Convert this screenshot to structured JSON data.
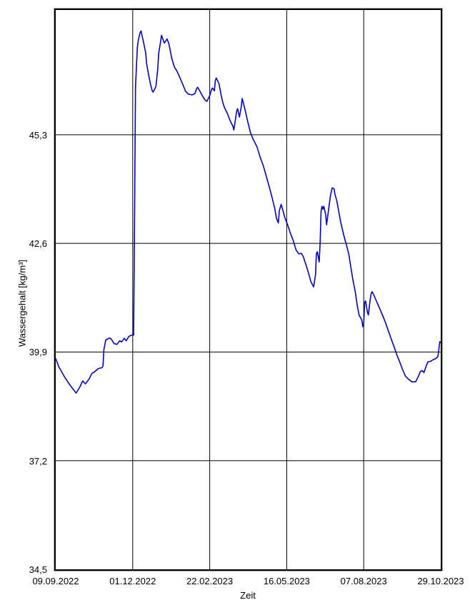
{
  "chart_data": {
    "type": "line",
    "title": "",
    "xlabel": "Zeit",
    "ylabel": "Wassergehalt [kg/m³]",
    "x_unit": "days since 09.09.2022",
    "xlim": [
      0,
      415
    ],
    "ylim": [
      34.5,
      48.4
    ],
    "grid": true,
    "legend": "none",
    "axis_color": "#000000",
    "grid_color": "#000000",
    "frame_shadow_color": "#a9a9a9",
    "line_color": "#0000cc",
    "x_ticks": [
      {
        "day": 0,
        "label": "09.09.2022"
      },
      {
        "day": 83,
        "label": "01.12.2022"
      },
      {
        "day": 166,
        "label": "22.02.2023"
      },
      {
        "day": 249,
        "label": "16.05.2023"
      },
      {
        "day": 332,
        "label": "07.08.2023"
      },
      {
        "day": 415,
        "label": "29.10.2023"
      }
    ],
    "y_ticks": [
      {
        "value": 34.5,
        "label": "34,5"
      },
      {
        "value": 37.2,
        "label": "37,2"
      },
      {
        "value": 39.9,
        "label": "39,9"
      },
      {
        "value": 42.6,
        "label": "42,6"
      },
      {
        "value": 45.3,
        "label": "45,3"
      }
    ],
    "series": [
      {
        "name": "Wassergehalt",
        "points": [
          [
            0,
            39.74
          ],
          [
            3,
            39.55
          ],
          [
            9,
            39.3
          ],
          [
            15,
            39.09
          ],
          [
            21,
            38.91
          ],
          [
            22,
            38.88
          ],
          [
            26,
            39.03
          ],
          [
            29,
            39.18
          ],
          [
            32,
            39.11
          ],
          [
            36,
            39.23
          ],
          [
            39,
            39.37
          ],
          [
            42,
            39.41
          ],
          [
            46,
            39.49
          ],
          [
            50,
            39.51
          ],
          [
            51,
            39.56
          ],
          [
            52,
            39.97
          ],
          [
            54,
            40.2
          ],
          [
            58,
            40.25
          ],
          [
            60,
            40.22
          ],
          [
            63,
            40.11
          ],
          [
            66,
            40.09
          ],
          [
            69,
            40.18
          ],
          [
            71,
            40.15
          ],
          [
            74,
            40.24
          ],
          [
            76,
            40.18
          ],
          [
            79,
            40.29
          ],
          [
            82,
            40.32
          ],
          [
            84,
            40.32
          ],
          [
            85,
            43.3
          ],
          [
            86,
            46.5
          ],
          [
            88,
            47.47
          ],
          [
            89,
            47.65
          ],
          [
            91,
            47.84
          ],
          [
            92,
            47.88
          ],
          [
            93,
            47.77
          ],
          [
            95,
            47.56
          ],
          [
            97,
            47.33
          ],
          [
            98,
            47.06
          ],
          [
            100,
            46.8
          ],
          [
            102,
            46.57
          ],
          [
            104,
            46.39
          ],
          [
            105,
            46.36
          ],
          [
            108,
            46.5
          ],
          [
            110,
            46.94
          ],
          [
            111,
            47.33
          ],
          [
            113,
            47.61
          ],
          [
            114,
            47.77
          ],
          [
            117,
            47.58
          ],
          [
            120,
            47.68
          ],
          [
            122,
            47.56
          ],
          [
            125,
            47.21
          ],
          [
            128,
            46.98
          ],
          [
            131,
            46.87
          ],
          [
            134,
            46.71
          ],
          [
            137,
            46.55
          ],
          [
            140,
            46.38
          ],
          [
            143,
            46.31
          ],
          [
            147,
            46.29
          ],
          [
            150,
            46.32
          ],
          [
            152,
            46.45
          ],
          [
            153,
            46.48
          ],
          [
            156,
            46.36
          ],
          [
            158,
            46.27
          ],
          [
            161,
            46.16
          ],
          [
            163,
            46.13
          ],
          [
            166,
            46.27
          ],
          [
            168,
            46.43
          ],
          [
            169,
            46.46
          ],
          [
            171,
            46.39
          ],
          [
            172,
            46.64
          ],
          [
            173,
            46.71
          ],
          [
            176,
            46.57
          ],
          [
            178,
            46.32
          ],
          [
            180,
            46.11
          ],
          [
            182,
            45.97
          ],
          [
            185,
            45.83
          ],
          [
            188,
            45.65
          ],
          [
            191,
            45.51
          ],
          [
            192,
            45.42
          ],
          [
            195,
            45.88
          ],
          [
            196,
            45.95
          ],
          [
            198,
            45.74
          ],
          [
            200,
            46.0
          ],
          [
            201,
            46.2
          ],
          [
            204,
            45.93
          ],
          [
            207,
            45.62
          ],
          [
            210,
            45.35
          ],
          [
            213,
            45.18
          ],
          [
            217,
            45.0
          ],
          [
            220,
            44.77
          ],
          [
            224,
            44.51
          ],
          [
            228,
            44.19
          ],
          [
            232,
            43.85
          ],
          [
            236,
            43.48
          ],
          [
            238,
            43.22
          ],
          [
            240,
            43.11
          ],
          [
            241,
            43.41
          ],
          [
            243,
            43.57
          ],
          [
            245,
            43.41
          ],
          [
            247,
            43.24
          ],
          [
            250,
            43.06
          ],
          [
            253,
            42.85
          ],
          [
            256,
            42.67
          ],
          [
            259,
            42.44
          ],
          [
            262,
            42.34
          ],
          [
            265,
            42.35
          ],
          [
            267,
            42.26
          ],
          [
            270,
            42.05
          ],
          [
            273,
            41.82
          ],
          [
            275,
            41.65
          ],
          [
            278,
            41.52
          ],
          [
            280,
            41.82
          ],
          [
            281,
            42.35
          ],
          [
            282,
            42.39
          ],
          [
            284,
            42.14
          ],
          [
            285,
            42.62
          ],
          [
            286,
            43.4
          ],
          [
            287,
            43.52
          ],
          [
            288,
            43.45
          ],
          [
            289,
            43.52
          ],
          [
            291,
            43.32
          ],
          [
            292,
            43.06
          ],
          [
            294,
            43.41
          ],
          [
            296,
            43.76
          ],
          [
            298,
            43.98
          ],
          [
            300,
            43.96
          ],
          [
            301,
            43.82
          ],
          [
            303,
            43.66
          ],
          [
            305,
            43.41
          ],
          [
            307,
            43.15
          ],
          [
            310,
            42.85
          ],
          [
            312,
            42.67
          ],
          [
            313,
            42.6
          ],
          [
            316,
            42.32
          ],
          [
            318,
            42.03
          ],
          [
            320,
            41.74
          ],
          [
            323,
            41.38
          ],
          [
            325,
            41.06
          ],
          [
            327,
            40.82
          ],
          [
            330,
            40.69
          ],
          [
            331,
            40.53
          ],
          [
            332,
            40.6
          ],
          [
            333,
            41.13
          ],
          [
            334,
            41.17
          ],
          [
            336,
            40.89
          ],
          [
            337,
            40.82
          ],
          [
            339,
            41.21
          ],
          [
            340,
            41.35
          ],
          [
            341,
            41.4
          ],
          [
            343,
            41.31
          ],
          [
            346,
            41.15
          ],
          [
            349,
            40.99
          ],
          [
            352,
            40.83
          ],
          [
            355,
            40.66
          ],
          [
            358,
            40.46
          ],
          [
            362,
            40.2
          ],
          [
            365,
            40.01
          ],
          [
            368,
            39.81
          ],
          [
            371,
            39.64
          ],
          [
            374,
            39.46
          ],
          [
            377,
            39.3
          ],
          [
            381,
            39.21
          ],
          [
            384,
            39.16
          ],
          [
            388,
            39.16
          ],
          [
            391,
            39.3
          ],
          [
            393,
            39.41
          ],
          [
            395,
            39.44
          ],
          [
            397,
            39.39
          ],
          [
            399,
            39.53
          ],
          [
            401,
            39.65
          ],
          [
            404,
            39.67
          ],
          [
            407,
            39.71
          ],
          [
            410,
            39.74
          ],
          [
            412,
            39.79
          ],
          [
            413,
            39.97
          ],
          [
            414,
            40.16
          ],
          [
            415,
            40.13
          ]
        ]
      }
    ]
  }
}
